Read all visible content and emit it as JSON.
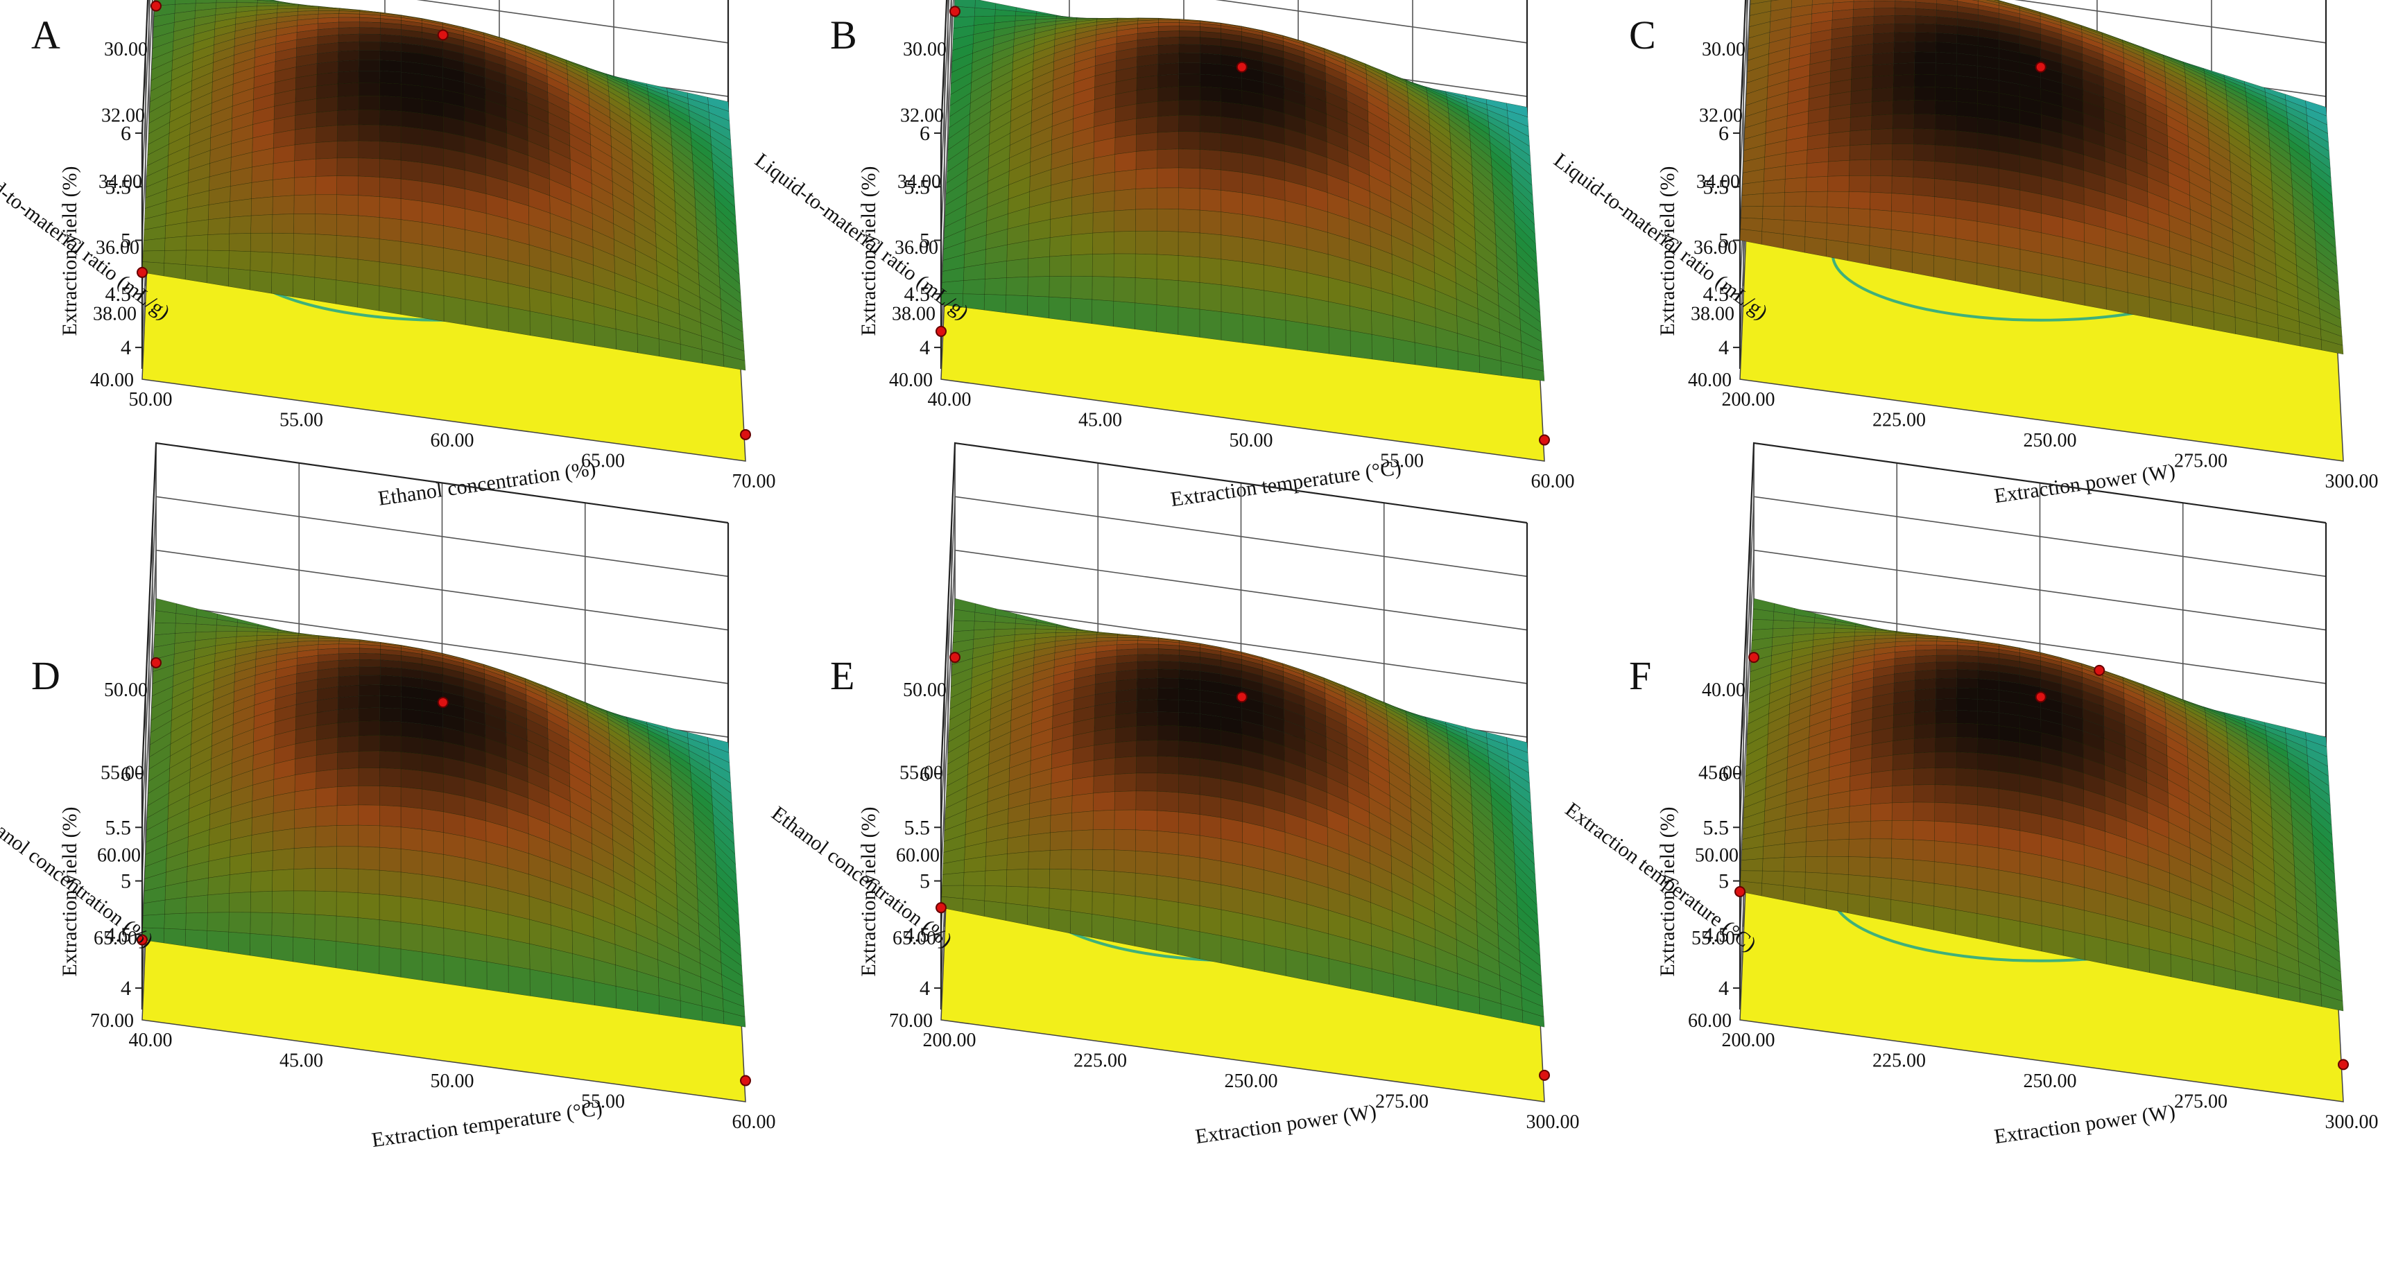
{
  "figure": {
    "z_label": "Extraction yield (%)",
    "z_ticks": [
      "4",
      "4.5",
      "5",
      "5.5",
      "6"
    ],
    "zlim": [
      3.8,
      6.0
    ]
  },
  "chart_data": [
    {
      "type": "surface",
      "panel": "A",
      "xlabel": "Liquid-to-material ratio (mL/g)",
      "x_ticks": [
        "30.00",
        "32.00",
        "34.00",
        "36.00",
        "38.00",
        "40.00"
      ],
      "xlim": [
        30,
        40
      ],
      "ylabel": "Ethanol concentration (%)",
      "y_ticks": [
        "50.00",
        "55.00",
        "60.00",
        "65.00",
        "70.00"
      ],
      "ylim": [
        50,
        70
      ],
      "zlabel": "Extraction yield (%)",
      "zlim": [
        3.8,
        6.0
      ],
      "surface_corners": {
        "x_min_y_min": 4.7,
        "x_min_y_max": 4.4,
        "x_max_y_min": 4.55,
        "x_max_y_max": 3.95
      },
      "surface_peak": 5.45,
      "points": [
        {
          "x": 30,
          "y": 50,
          "z": 4.7
        },
        {
          "x": 40,
          "y": 50,
          "z": 3.95
        },
        {
          "x": 30,
          "y": 70,
          "z": 4.1
        },
        {
          "x": 35,
          "y": 60,
          "z": 5.75
        }
      ]
    },
    {
      "type": "surface",
      "panel": "B",
      "xlabel": "Liquid-to-material ratio (mL/g)",
      "x_ticks": [
        "30.00",
        "32.00",
        "34.00",
        "36.00",
        "38.00",
        "40.00"
      ],
      "xlim": [
        30,
        40
      ],
      "ylabel": "Extraction temperature (°C)",
      "y_ticks": [
        "40.00",
        "45.00",
        "50.00",
        "55.00",
        "60.00"
      ],
      "ylim": [
        40,
        60
      ],
      "zlabel": "Extraction yield (%)",
      "zlim": [
        3.8,
        6.0
      ],
      "surface_corners": {
        "x_min_y_min": 4.4,
        "x_min_y_max": 4.2,
        "x_max_y_min": 4.45,
        "x_max_y_max": 3.9
      },
      "surface_peak": 5.45,
      "points": [
        {
          "x": 30,
          "y": 40,
          "z": 4.15
        },
        {
          "x": 40,
          "y": 40,
          "z": 3.9
        },
        {
          "x": 30,
          "y": 60,
          "z": 4.05
        },
        {
          "x": 35,
          "y": 50,
          "z": 5.45
        }
      ]
    },
    {
      "type": "surface",
      "panel": "C",
      "xlabel": "Liquid-to-material ratio (mL/g)",
      "x_ticks": [
        "30.00",
        "32.00",
        "34.00",
        "36.00",
        "38.00",
        "40.00"
      ],
      "xlim": [
        30,
        40
      ],
      "ylabel": "Extraction power (W)",
      "y_ticks": [
        "200.00",
        "225.00",
        "250.00",
        "275.00",
        "300.00"
      ],
      "ylim": [
        200,
        300
      ],
      "zlabel": "Extraction yield (%)",
      "zlim": [
        3.8,
        6.0
      ],
      "surface_corners": {
        "x_min_y_min": 5.0,
        "x_min_y_max": 4.85,
        "x_max_y_min": 4.7,
        "x_max_y_max": 3.9
      },
      "surface_peak": 5.45,
      "points": [
        {
          "x": 30,
          "y": 300,
          "z": 4.8
        },
        {
          "x": 35,
          "y": 250,
          "z": 5.45
        }
      ]
    },
    {
      "type": "surface",
      "panel": "D",
      "xlabel": "Ethanol concentration (%)",
      "x_ticks": [
        "50.00",
        "55.00",
        "60.00",
        "65.00",
        "70.00"
      ],
      "xlim": [
        50,
        70
      ],
      "ylabel": "Extraction temperature (°C)",
      "y_ticks": [
        "40.00",
        "45.00",
        "50.00",
        "55.00",
        "60.00"
      ],
      "ylim": [
        40,
        60
      ],
      "zlabel": "Extraction yield (%)",
      "zlim": [
        3.8,
        6.0
      ],
      "surface_corners": {
        "x_min_y_min": 4.45,
        "x_min_y_max": 4.55,
        "x_max_y_min": 4.4,
        "x_max_y_max": 3.95
      },
      "surface_peak": 5.5,
      "points": [
        {
          "x": 50,
          "y": 40,
          "z": 4.45
        },
        {
          "x": 70,
          "y": 40,
          "z": 3.9
        },
        {
          "x": 50,
          "y": 60,
          "z": 3.95
        },
        {
          "x": 60,
          "y": 50,
          "z": 5.5
        }
      ]
    },
    {
      "type": "surface",
      "panel": "E",
      "xlabel": "Ethanol concentration (%)",
      "x_ticks": [
        "50.00",
        "55.00",
        "60.00",
        "65.00",
        "70.00"
      ],
      "xlim": [
        50,
        70
      ],
      "ylabel": "Extraction power (W)",
      "y_ticks": [
        "200.00",
        "225.00",
        "250.00",
        "275.00",
        "300.00"
      ],
      "ylim": [
        200,
        300
      ],
      "zlabel": "Extraction yield (%)",
      "zlim": [
        3.8,
        6.0
      ],
      "surface_corners": {
        "x_min_y_min": 4.75,
        "x_min_y_max": 4.55,
        "x_max_y_min": 4.4,
        "x_max_y_max": 3.95
      },
      "surface_peak": 5.55,
      "points": [
        {
          "x": 50,
          "y": 200,
          "z": 4.75
        },
        {
          "x": 70,
          "y": 200,
          "z": 3.95
        },
        {
          "x": 50,
          "y": 300,
          "z": 4.0
        },
        {
          "x": 60,
          "y": 250,
          "z": 5.55
        }
      ]
    },
    {
      "type": "surface",
      "panel": "F",
      "xlabel": "Extraction temperature (°C)",
      "x_ticks": [
        "40.00",
        "45.00",
        "50.00",
        "55.00",
        "60.00"
      ],
      "xlim": [
        40,
        60
      ],
      "ylabel": "Extraction power (W)",
      "y_ticks": [
        "200.00",
        "225.00",
        "250.00",
        "275.00",
        "300.00"
      ],
      "ylim": [
        200,
        300
      ],
      "zlabel": "Extraction yield (%)",
      "zlim": [
        3.8,
        6.0
      ],
      "surface_corners": {
        "x_min_y_min": 4.9,
        "x_min_y_max": 4.55,
        "x_max_y_min": 4.55,
        "x_max_y_max": 4.0
      },
      "surface_peak": 5.55,
      "points": [
        {
          "x": 40,
          "y": 200,
          "z": 4.9
        },
        {
          "x": 60,
          "y": 200,
          "z": 4.05
        },
        {
          "x": 40,
          "y": 300,
          "z": 4.0
        },
        {
          "x": 50,
          "y": 250,
          "z": 5.55
        },
        {
          "x": 52,
          "y": 254,
          "z": 5.75
        }
      ]
    }
  ]
}
